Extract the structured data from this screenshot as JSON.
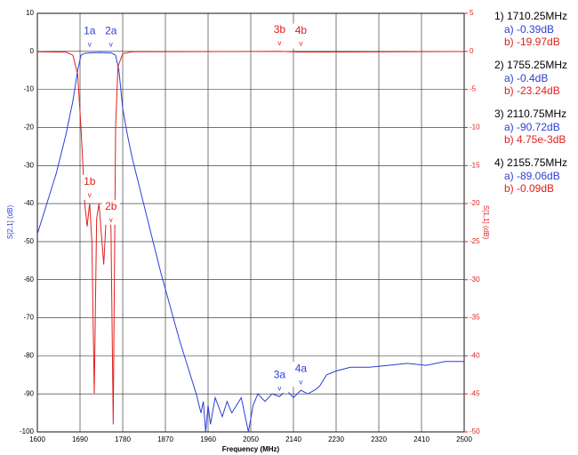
{
  "chart_data": {
    "type": "line",
    "x_label": "Frequency (MHz)",
    "y_label": "S[2,1] (dB)",
    "y2_label": "S[1,1] (dB)",
    "xlim": [
      1600,
      2500
    ],
    "xticks": [
      1600,
      1690,
      1780,
      1870,
      1960,
      2050,
      2140,
      2230,
      2320,
      2410,
      2500
    ],
    "ylim": [
      -100,
      10
    ],
    "yticks": [
      10,
      0,
      -10,
      -20,
      -30,
      -40,
      -50,
      -60,
      -70,
      -80,
      -90,
      -100
    ],
    "y2lim": [
      -50,
      5
    ],
    "y2ticks": [
      5,
      0,
      -5,
      -10,
      -15,
      -20,
      -25,
      -30,
      -35,
      -40,
      -45,
      -50
    ],
    "grid": true,
    "series": [
      {
        "name": "S[2,1]",
        "color": "#2b3fd6",
        "x": [
          1600,
          1620,
          1640,
          1660,
          1675,
          1685,
          1692,
          1700,
          1710.25,
          1730,
          1755.25,
          1765,
          1772,
          1780,
          1790,
          1800,
          1820,
          1840,
          1860,
          1880,
          1900,
          1920,
          1935,
          1945,
          1950,
          1955,
          1960,
          1965,
          1975,
          1990,
          2000,
          2010,
          2030,
          2045,
          2055,
          2065,
          2080,
          2095,
          2110.75,
          2125,
          2140,
          2155.75,
          2170,
          2185,
          2195,
          2210,
          2230,
          2260,
          2300,
          2340,
          2380,
          2420,
          2460,
          2500
        ],
        "values": [
          -48,
          -40,
          -32,
          -22,
          -13,
          -5,
          -1,
          -0.5,
          -0.39,
          -0.3,
          -0.4,
          -1,
          -5,
          -15,
          -22,
          -28,
          -38,
          -48,
          -58,
          -67,
          -76,
          -84,
          -90,
          -95,
          -92,
          -100,
          -93,
          -98,
          -91,
          -96,
          -92,
          -95,
          -91,
          -100,
          -93,
          -90,
          -92,
          -90,
          -90.72,
          -89,
          -91,
          -89.06,
          -90,
          -89,
          -88,
          -85,
          -84,
          -83,
          -83,
          -82.5,
          -82,
          -82.5,
          -81.5,
          -81.5
        ]
      },
      {
        "name": "S[1,1]",
        "color": "#e02020",
        "axis": "y2",
        "x": [
          1600,
          1660,
          1675,
          1685,
          1692,
          1700,
          1705,
          1710.25,
          1715,
          1720,
          1725,
          1730,
          1735,
          1740,
          1745,
          1750,
          1755.25,
          1760,
          1765,
          1770,
          1780,
          1800,
          2110.75,
          2155.75,
          2500
        ],
        "values": [
          -0.05,
          -0.1,
          -0.5,
          -3,
          -10,
          -20,
          -23,
          -19.97,
          -25,
          -45,
          -22,
          -20,
          -24,
          -28,
          -22,
          -20,
          -23.24,
          -49,
          -10,
          -2,
          -0.3,
          -0.05,
          0.00475,
          -0.09,
          -0.02
        ]
      }
    ],
    "marker_symbol": "v",
    "markers": [
      {
        "label": "1a",
        "x": 1710.25,
        "value": -0.39,
        "series": 0
      },
      {
        "label": "2a",
        "x": 1755.25,
        "value": -0.4,
        "series": 0
      },
      {
        "label": "3a",
        "x": 2110.75,
        "value": -90.72,
        "series": 0
      },
      {
        "label": "4a",
        "x": 2155.75,
        "value": -89.06,
        "series": 0
      },
      {
        "label": "1b",
        "x": 1710.25,
        "value": -19.97,
        "series": 1
      },
      {
        "label": "2b",
        "x": 1755.25,
        "value": -23.24,
        "series": 1
      },
      {
        "label": "3b",
        "x": 2110.75,
        "value": 0.00475,
        "series": 1
      },
      {
        "label": "4b",
        "x": 2155.75,
        "value": -0.09,
        "series": 1
      }
    ],
    "readouts": [
      {
        "freq": "1) 1710.25MHz",
        "a": "a) -0.39dB",
        "b": "b) -19.97dB"
      },
      {
        "freq": "2) 1755.25MHz",
        "a": "a) -0.4dB",
        "b": "b) -23.24dB"
      },
      {
        "freq": "3) 2110.75MHz",
        "a": "a) -90.72dB",
        "b": "b) 4.75e-3dB"
      },
      {
        "freq": "4) 2155.75MHz",
        "a": "a) -89.06dB",
        "b": "b) -0.09dB"
      }
    ]
  }
}
